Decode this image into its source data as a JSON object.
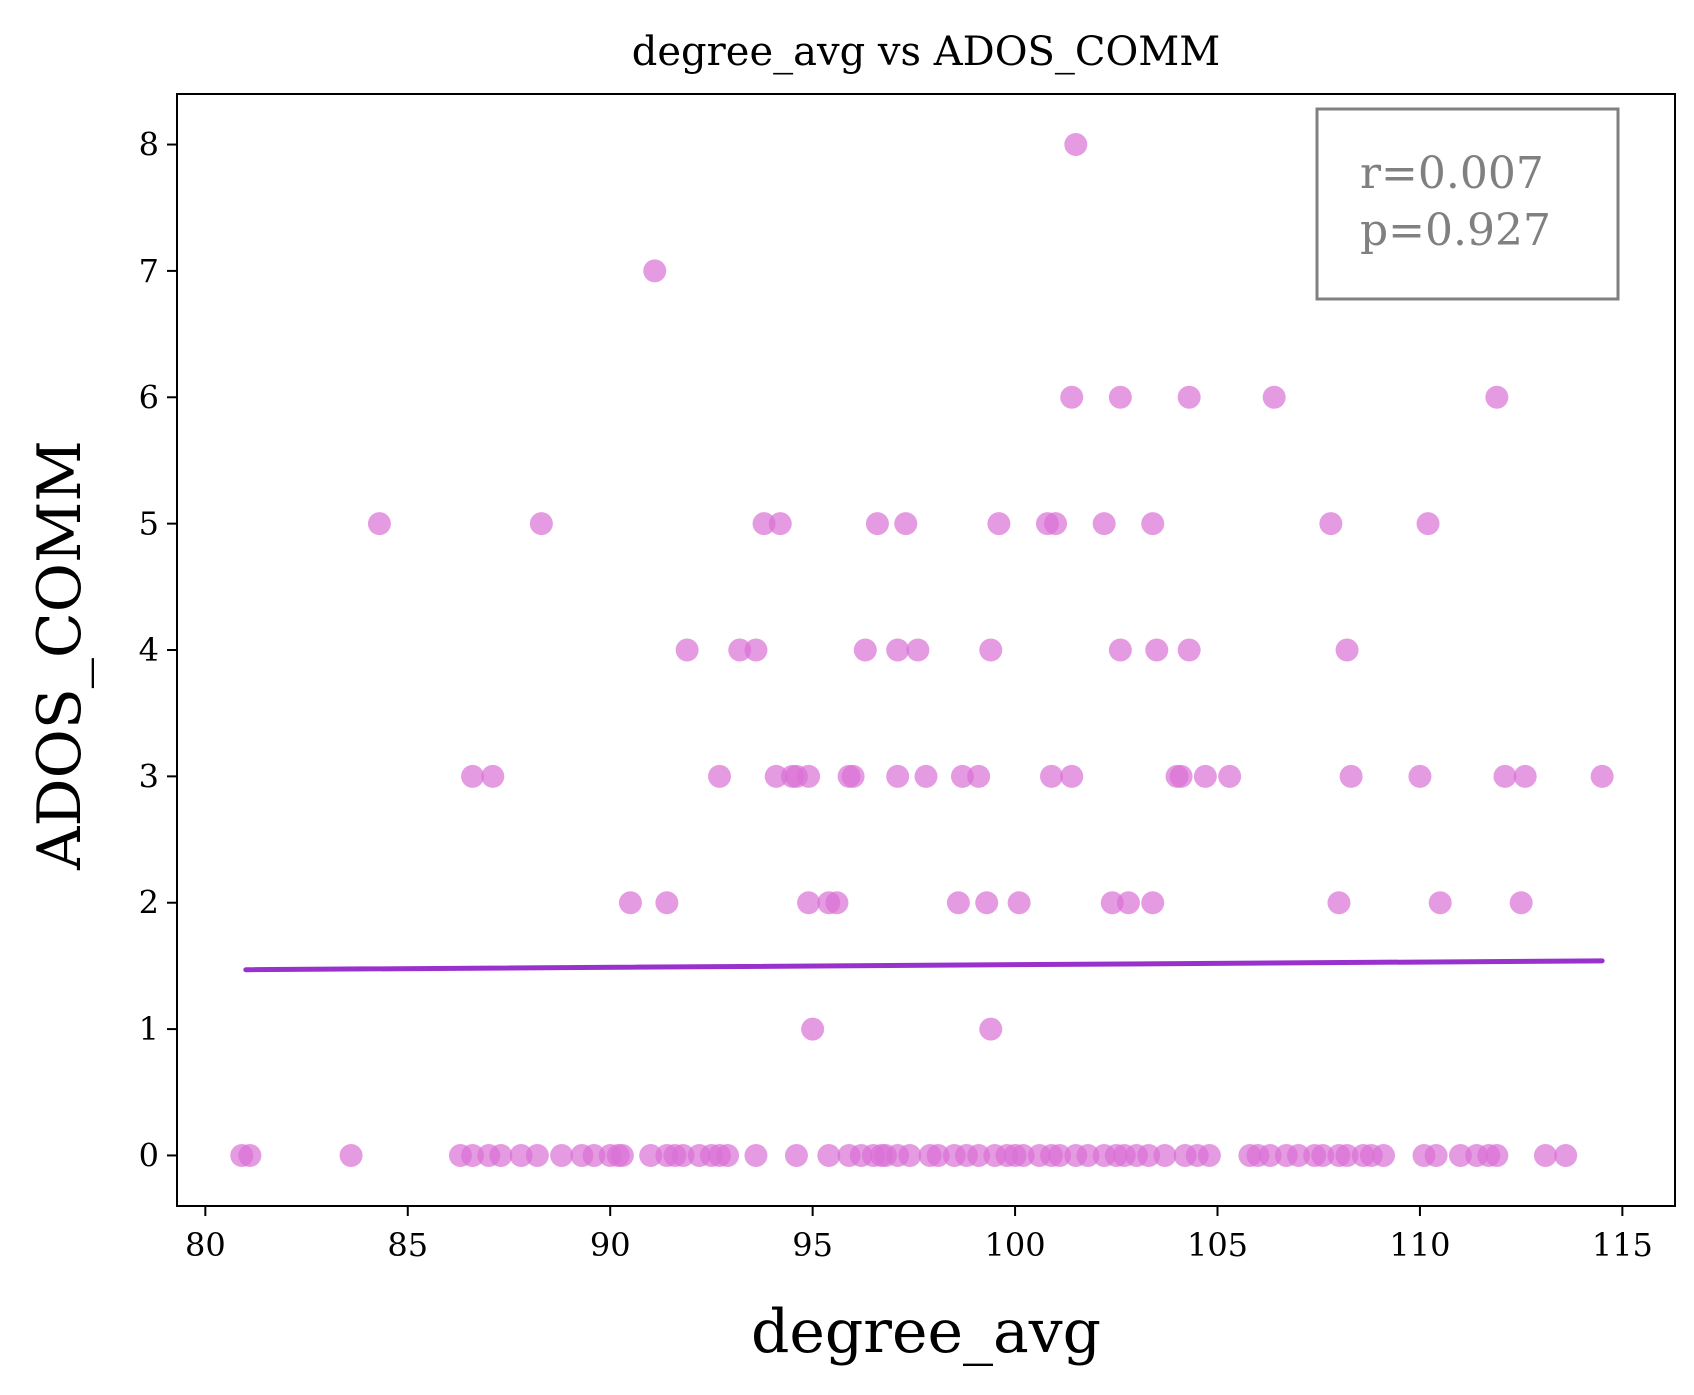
{
  "chart_data": {
    "type": "scatter",
    "title": "degree_avg vs ADOS_COMM",
    "xlabel": "degree_avg",
    "ylabel": "ADOS_COMM",
    "xlim": [
      79.3,
      116.3
    ],
    "ylim": [
      -0.4,
      8.4
    ],
    "xticks": [
      80,
      85,
      90,
      95,
      100,
      105,
      110,
      115
    ],
    "yticks": [
      0,
      1,
      2,
      3,
      4,
      5,
      6,
      7,
      8
    ],
    "xtick_labels": [
      "80",
      "85",
      "90",
      "95",
      "100",
      "105",
      "110",
      "115"
    ],
    "ytick_labels": [
      "0",
      "1",
      "2",
      "3",
      "4",
      "5",
      "6",
      "7",
      "8"
    ],
    "grid": false,
    "annotation": {
      "lines": [
        "r=0.007",
        "p=0.927"
      ],
      "position": "top-right"
    },
    "colors": {
      "points": "#da70d6",
      "fit_line": "#9932cc",
      "annotation": "#808080"
    },
    "fit_line": {
      "x": [
        81.0,
        114.5
      ],
      "y": [
        1.47,
        1.54
      ]
    },
    "points": [
      {
        "x": 101.5,
        "y": 8
      },
      {
        "x": 91.1,
        "y": 7
      },
      {
        "x": 101.4,
        "y": 6
      },
      {
        "x": 102.6,
        "y": 6
      },
      {
        "x": 104.3,
        "y": 6
      },
      {
        "x": 106.4,
        "y": 6
      },
      {
        "x": 111.9,
        "y": 6
      },
      {
        "x": 84.3,
        "y": 5
      },
      {
        "x": 88.3,
        "y": 5
      },
      {
        "x": 93.8,
        "y": 5
      },
      {
        "x": 94.2,
        "y": 5
      },
      {
        "x": 96.6,
        "y": 5
      },
      {
        "x": 97.3,
        "y": 5
      },
      {
        "x": 99.6,
        "y": 5
      },
      {
        "x": 100.8,
        "y": 5
      },
      {
        "x": 101.0,
        "y": 5
      },
      {
        "x": 102.2,
        "y": 5
      },
      {
        "x": 103.4,
        "y": 5
      },
      {
        "x": 107.8,
        "y": 5
      },
      {
        "x": 110.2,
        "y": 5
      },
      {
        "x": 91.9,
        "y": 4
      },
      {
        "x": 93.2,
        "y": 4
      },
      {
        "x": 93.6,
        "y": 4
      },
      {
        "x": 96.3,
        "y": 4
      },
      {
        "x": 97.1,
        "y": 4
      },
      {
        "x": 97.6,
        "y": 4
      },
      {
        "x": 99.4,
        "y": 4
      },
      {
        "x": 102.6,
        "y": 4
      },
      {
        "x": 103.5,
        "y": 4
      },
      {
        "x": 104.3,
        "y": 4
      },
      {
        "x": 108.2,
        "y": 4
      },
      {
        "x": 86.6,
        "y": 3
      },
      {
        "x": 87.1,
        "y": 3
      },
      {
        "x": 92.7,
        "y": 3
      },
      {
        "x": 94.1,
        "y": 3
      },
      {
        "x": 94.5,
        "y": 3
      },
      {
        "x": 94.6,
        "y": 3
      },
      {
        "x": 94.9,
        "y": 3
      },
      {
        "x": 95.9,
        "y": 3
      },
      {
        "x": 96.0,
        "y": 3
      },
      {
        "x": 97.1,
        "y": 3
      },
      {
        "x": 97.8,
        "y": 3
      },
      {
        "x": 98.7,
        "y": 3
      },
      {
        "x": 99.1,
        "y": 3
      },
      {
        "x": 100.9,
        "y": 3
      },
      {
        "x": 101.4,
        "y": 3
      },
      {
        "x": 104.0,
        "y": 3
      },
      {
        "x": 104.1,
        "y": 3
      },
      {
        "x": 104.7,
        "y": 3
      },
      {
        "x": 105.3,
        "y": 3
      },
      {
        "x": 108.3,
        "y": 3
      },
      {
        "x": 110.0,
        "y": 3
      },
      {
        "x": 112.1,
        "y": 3
      },
      {
        "x": 112.6,
        "y": 3
      },
      {
        "x": 114.5,
        "y": 3
      },
      {
        "x": 90.5,
        "y": 2
      },
      {
        "x": 91.4,
        "y": 2
      },
      {
        "x": 94.9,
        "y": 2
      },
      {
        "x": 95.4,
        "y": 2
      },
      {
        "x": 95.6,
        "y": 2
      },
      {
        "x": 98.6,
        "y": 2
      },
      {
        "x": 99.3,
        "y": 2
      },
      {
        "x": 100.1,
        "y": 2
      },
      {
        "x": 102.4,
        "y": 2
      },
      {
        "x": 102.8,
        "y": 2
      },
      {
        "x": 103.4,
        "y": 2
      },
      {
        "x": 108.0,
        "y": 2
      },
      {
        "x": 110.5,
        "y": 2
      },
      {
        "x": 112.5,
        "y": 2
      },
      {
        "x": 95.0,
        "y": 1
      },
      {
        "x": 99.4,
        "y": 1
      },
      {
        "x": 80.9,
        "y": 0
      },
      {
        "x": 81.1,
        "y": 0
      },
      {
        "x": 83.6,
        "y": 0
      },
      {
        "x": 86.3,
        "y": 0
      },
      {
        "x": 86.6,
        "y": 0
      },
      {
        "x": 87.0,
        "y": 0
      },
      {
        "x": 87.3,
        "y": 0
      },
      {
        "x": 87.8,
        "y": 0
      },
      {
        "x": 88.2,
        "y": 0
      },
      {
        "x": 88.8,
        "y": 0
      },
      {
        "x": 89.3,
        "y": 0
      },
      {
        "x": 89.6,
        "y": 0
      },
      {
        "x": 90.0,
        "y": 0
      },
      {
        "x": 90.2,
        "y": 0
      },
      {
        "x": 90.3,
        "y": 0
      },
      {
        "x": 91.0,
        "y": 0
      },
      {
        "x": 91.4,
        "y": 0
      },
      {
        "x": 91.6,
        "y": 0
      },
      {
        "x": 91.8,
        "y": 0
      },
      {
        "x": 92.2,
        "y": 0
      },
      {
        "x": 92.5,
        "y": 0
      },
      {
        "x": 92.7,
        "y": 0
      },
      {
        "x": 92.9,
        "y": 0
      },
      {
        "x": 93.6,
        "y": 0
      },
      {
        "x": 94.6,
        "y": 0
      },
      {
        "x": 95.4,
        "y": 0
      },
      {
        "x": 95.9,
        "y": 0
      },
      {
        "x": 96.2,
        "y": 0
      },
      {
        "x": 96.5,
        "y": 0
      },
      {
        "x": 96.7,
        "y": 0
      },
      {
        "x": 96.8,
        "y": 0
      },
      {
        "x": 97.1,
        "y": 0
      },
      {
        "x": 97.4,
        "y": 0
      },
      {
        "x": 97.9,
        "y": 0
      },
      {
        "x": 98.1,
        "y": 0
      },
      {
        "x": 98.5,
        "y": 0
      },
      {
        "x": 98.8,
        "y": 0
      },
      {
        "x": 99.1,
        "y": 0
      },
      {
        "x": 99.5,
        "y": 0
      },
      {
        "x": 99.8,
        "y": 0
      },
      {
        "x": 100.0,
        "y": 0
      },
      {
        "x": 100.2,
        "y": 0
      },
      {
        "x": 100.6,
        "y": 0
      },
      {
        "x": 100.9,
        "y": 0
      },
      {
        "x": 101.1,
        "y": 0
      },
      {
        "x": 101.5,
        "y": 0
      },
      {
        "x": 101.8,
        "y": 0
      },
      {
        "x": 102.2,
        "y": 0
      },
      {
        "x": 102.5,
        "y": 0
      },
      {
        "x": 102.7,
        "y": 0
      },
      {
        "x": 103.0,
        "y": 0
      },
      {
        "x": 103.3,
        "y": 0
      },
      {
        "x": 103.7,
        "y": 0
      },
      {
        "x": 104.2,
        "y": 0
      },
      {
        "x": 104.5,
        "y": 0
      },
      {
        "x": 104.8,
        "y": 0
      },
      {
        "x": 105.8,
        "y": 0
      },
      {
        "x": 106.0,
        "y": 0
      },
      {
        "x": 106.3,
        "y": 0
      },
      {
        "x": 106.7,
        "y": 0
      },
      {
        "x": 107.0,
        "y": 0
      },
      {
        "x": 107.4,
        "y": 0
      },
      {
        "x": 107.6,
        "y": 0
      },
      {
        "x": 108.0,
        "y": 0
      },
      {
        "x": 108.2,
        "y": 0
      },
      {
        "x": 108.6,
        "y": 0
      },
      {
        "x": 108.8,
        "y": 0
      },
      {
        "x": 109.1,
        "y": 0
      },
      {
        "x": 110.1,
        "y": 0
      },
      {
        "x": 110.4,
        "y": 0
      },
      {
        "x": 111.0,
        "y": 0
      },
      {
        "x": 111.4,
        "y": 0
      },
      {
        "x": 111.7,
        "y": 0
      },
      {
        "x": 111.9,
        "y": 0
      },
      {
        "x": 113.1,
        "y": 0
      },
      {
        "x": 113.6,
        "y": 0
      }
    ]
  }
}
